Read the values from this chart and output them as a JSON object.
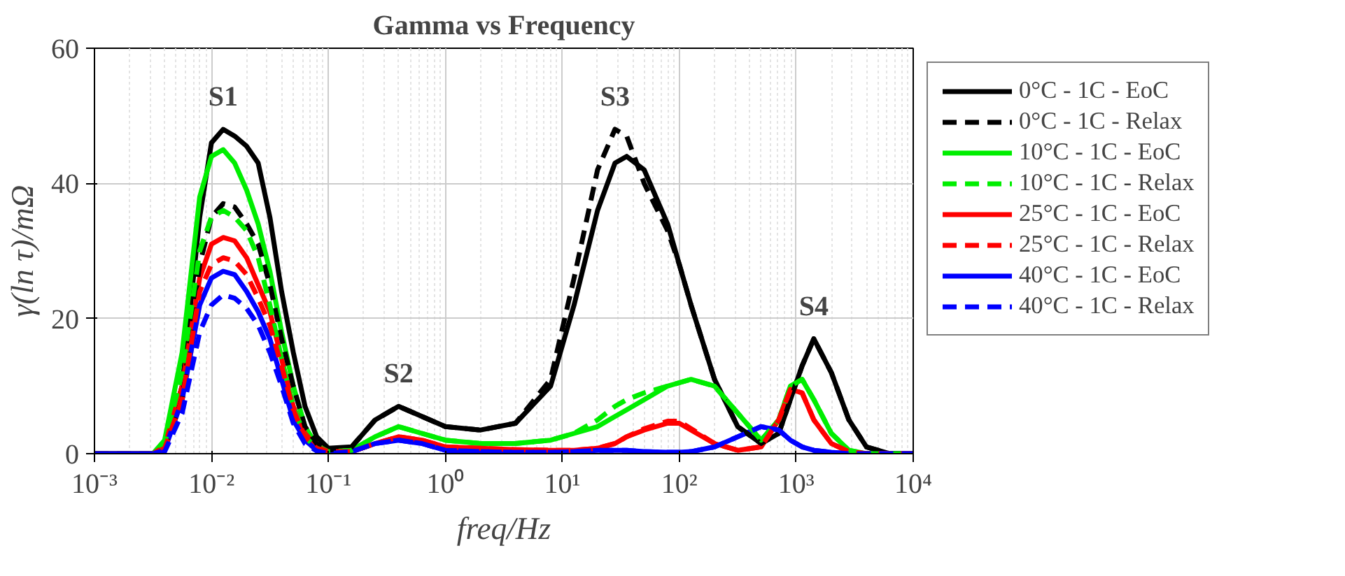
{
  "chart_data": {
    "type": "line",
    "title": "Gamma vs Frequency",
    "xlabel": "freq/Hz",
    "ylabel": "γ(ln τ)/mΩ",
    "log": "x",
    "x": [
      0.001,
      0.00316,
      0.00398,
      0.00562,
      0.00794,
      0.01,
      0.0126,
      0.0158,
      0.02,
      0.0251,
      0.0316,
      0.0398,
      0.0501,
      0.0631,
      0.0794,
      0.1,
      0.158,
      0.251,
      0.398,
      0.631,
      1,
      2,
      3.98,
      7.94,
      12.6,
      20,
      28.2,
      35.5,
      50.1,
      79.4,
      100,
      126,
      200,
      316,
      501,
      708,
      891,
      1122,
      1413,
      1995,
      2818,
      3981,
      6310,
      10000
    ],
    "xlim": [
      0.001,
      10000
    ],
    "xticks": [
      {
        "value": 0.001,
        "label": "10⁻³"
      },
      {
        "value": 0.01,
        "label": "10⁻²"
      },
      {
        "value": 0.1,
        "label": "10⁻¹"
      },
      {
        "value": 1,
        "label": "10⁰"
      },
      {
        "value": 10,
        "label": "10¹"
      },
      {
        "value": 100,
        "label": "10²"
      },
      {
        "value": 1000,
        "label": "10³"
      },
      {
        "value": 10000,
        "label": "10⁴"
      }
    ],
    "ylim": [
      0,
      60
    ],
    "yticks": [
      0,
      20,
      40,
      60
    ],
    "grid": true,
    "legend": "right",
    "marker": "none",
    "series": [
      {
        "name": "0°C - 1C - EoC",
        "color": "#000000",
        "line_style": "solid",
        "values": [
          0,
          0,
          1,
          10,
          35,
          46,
          48,
          47,
          45.5,
          43,
          35,
          24,
          15,
          7,
          2.5,
          0.8,
          1,
          5,
          7,
          5.5,
          4,
          3.5,
          4.5,
          10,
          22,
          36,
          43,
          44,
          42,
          34,
          28,
          22,
          11,
          4,
          1.5,
          3,
          8,
          13,
          17,
          12,
          5,
          1,
          0,
          0
        ]
      },
      {
        "name": "0°C - 1C - Relax",
        "color": "#000000",
        "line_style": "dashed",
        "values": [
          0,
          0,
          1,
          8,
          28,
          35,
          37,
          36.5,
          34,
          31,
          25,
          17,
          10,
          4,
          1.5,
          0.5,
          1,
          5,
          7,
          5.5,
          4,
          3.5,
          4.5,
          11,
          26,
          42,
          48,
          47,
          40,
          33,
          28,
          22,
          11,
          4,
          1.5,
          3,
          8,
          13,
          17,
          12,
          5,
          1,
          0,
          0
        ]
      },
      {
        "name": "10°C - 1C - EoC",
        "color": "#00ee00",
        "line_style": "solid",
        "values": [
          0,
          0,
          2,
          15,
          38,
          44,
          45,
          43,
          39,
          34,
          27,
          18,
          10,
          4,
          1.2,
          0.3,
          0.5,
          2.5,
          4,
          3,
          2,
          1.5,
          1.5,
          2,
          3,
          4,
          5.5,
          6.5,
          8,
          10,
          10.5,
          11,
          10,
          6,
          2,
          5,
          10,
          11,
          8,
          3,
          0.5,
          0,
          0,
          0
        ]
      },
      {
        "name": "10°C - 1C - Relax",
        "color": "#00ee00",
        "line_style": "dashed",
        "values": [
          0,
          0,
          1.5,
          12,
          30,
          35,
          36,
          35,
          33,
          29,
          22,
          14,
          7,
          2.5,
          0.8,
          0.3,
          0.5,
          2.5,
          4,
          3,
          2,
          1.5,
          1.5,
          2,
          3,
          5,
          7,
          8,
          9,
          10,
          10.5,
          11,
          10,
          6,
          2,
          5,
          10,
          11,
          8,
          3,
          0.5,
          0,
          0,
          0
        ]
      },
      {
        "name": "25°C - 1C - EoC",
        "color": "#ff0000",
        "line_style": "solid",
        "values": [
          0,
          0,
          1,
          10,
          26,
          31,
          32,
          31.5,
          29,
          25,
          21,
          14,
          7,
          3,
          1,
          0.3,
          0.3,
          1.5,
          2.5,
          2,
          1,
          0.8,
          0.6,
          0.5,
          0.5,
          0.8,
          1.5,
          2.5,
          3.5,
          4.5,
          4.5,
          3.5,
          1.5,
          0.5,
          1,
          5,
          9.5,
          9,
          5,
          1.5,
          0.3,
          0,
          0,
          0
        ]
      },
      {
        "name": "25°C - 1C - Relax",
        "color": "#ff0000",
        "line_style": "dashed",
        "values": [
          0,
          0,
          0.8,
          8,
          24,
          28,
          29,
          28.5,
          26.5,
          23,
          19,
          13,
          6.5,
          2.5,
          0.8,
          0.3,
          0.3,
          1.5,
          2.5,
          2,
          1,
          0.8,
          0.6,
          0.5,
          0.5,
          0.8,
          1.5,
          2.5,
          3.7,
          4.8,
          4.8,
          3.7,
          1.5,
          0.5,
          1,
          5,
          9.5,
          9,
          5,
          1.5,
          0.3,
          0,
          0,
          0
        ]
      },
      {
        "name": "40°C - 1C - EoC",
        "color": "#0000ff",
        "line_style": "solid",
        "values": [
          0,
          0,
          0.5,
          8,
          22,
          26,
          27,
          26.5,
          24,
          21,
          17,
          11,
          5,
          2,
          0.5,
          0,
          0.3,
          1.5,
          2,
          1.5,
          0.5,
          0.3,
          0.2,
          0.2,
          0.3,
          0.5,
          0.5,
          0.5,
          0.3,
          0.2,
          0.2,
          0.3,
          1,
          2.5,
          4,
          3.5,
          2,
          1,
          0.5,
          0.2,
          0,
          0,
          0,
          0
        ]
      },
      {
        "name": "40°C - 1C - Relax",
        "color": "#0000ff",
        "line_style": "dashed",
        "values": [
          0,
          0,
          0.3,
          6,
          18,
          22,
          23.5,
          23,
          21.5,
          19,
          15,
          10,
          4.5,
          1.5,
          0.4,
          0,
          0.3,
          1.5,
          2,
          1.5,
          0.5,
          0.3,
          0.2,
          0.2,
          0.3,
          0.5,
          0.5,
          0.5,
          0.3,
          0.2,
          0.2,
          0.3,
          1,
          2.5,
          4,
          3.5,
          2,
          1,
          0.5,
          0.2,
          0,
          0,
          0,
          0
        ]
      }
    ],
    "annotations": [
      {
        "text": "S1",
        "x": 0.0126,
        "y": 48
      },
      {
        "text": "S2",
        "x": 0.398,
        "y": 7
      },
      {
        "text": "S3",
        "x": 28.2,
        "y": 48
      },
      {
        "text": "S4",
        "x": 1413,
        "y": 17
      }
    ]
  }
}
